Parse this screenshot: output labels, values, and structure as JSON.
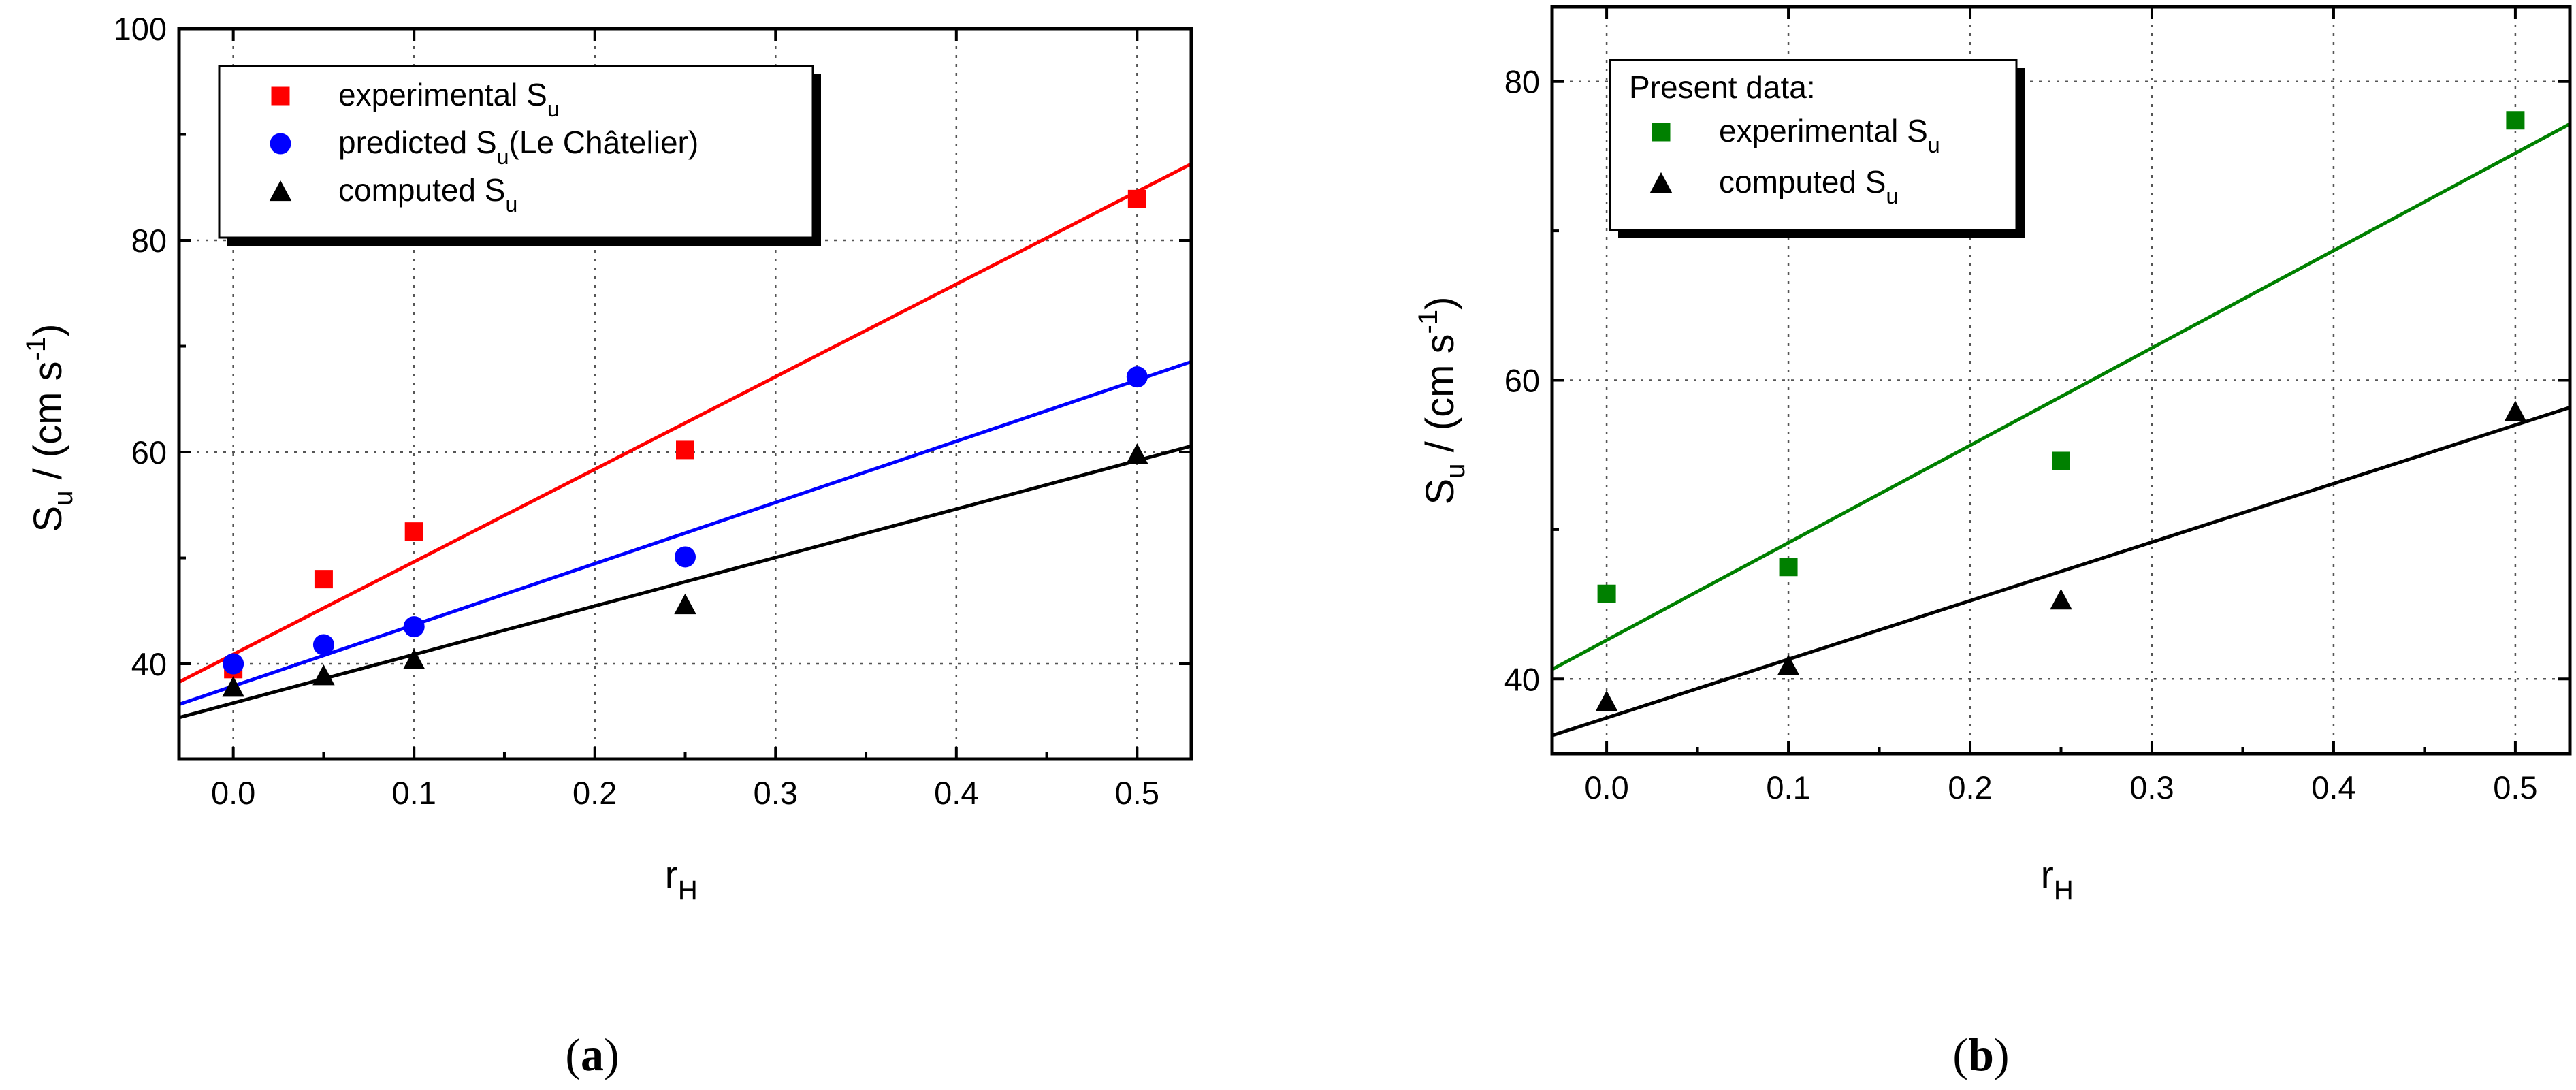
{
  "chart_data": [
    {
      "id": "a",
      "type": "scatter",
      "caption_letter": "a",
      "xlabel": "r",
      "xlabel_sub": "H",
      "ylabel_main": "S",
      "ylabel_sub": "u",
      "ylabel_unit": " / (cm s",
      "ylabel_sup": "-1",
      "ylabel_close": ")",
      "xlim": [
        -0.03,
        0.53
      ],
      "ylim": [
        31,
        100
      ],
      "xticks": [
        0.0,
        0.1,
        0.2,
        0.3,
        0.4,
        0.5
      ],
      "xtick_labels": [
        "0.0",
        "0.1",
        "0.2",
        "0.3",
        "0.4",
        "0.5"
      ],
      "yticks": [
        40,
        60,
        80,
        100
      ],
      "ytick_labels": [
        "40",
        "60",
        "80",
        "100"
      ],
      "grid": true,
      "legend_position": "top-left",
      "series": [
        {
          "name": "experimental S_u",
          "legend_label": "experimental S",
          "legend_sub": "u",
          "legend_suffix": "",
          "color": "#ff0000",
          "marker": "square",
          "x": [
            0.0,
            0.05,
            0.1,
            0.25,
            0.5
          ],
          "y": [
            39.5,
            48.0,
            52.5,
            60.2,
            83.9
          ],
          "fit": [
            40.9,
            84.6
          ]
        },
        {
          "name": "predicted S_u (Le Châtelier)",
          "legend_label": "predicted S",
          "legend_sub": "u",
          "legend_suffix": "(Le Châtelier)",
          "color": "#0000ff",
          "marker": "circle",
          "x": [
            0.0,
            0.05,
            0.1,
            0.25,
            0.5
          ],
          "y": [
            40.0,
            41.8,
            43.5,
            50.1,
            67.1
          ],
          "fit": [
            37.9,
            66.8
          ]
        },
        {
          "name": "computed S_u",
          "legend_label": "computed S",
          "legend_sub": "u",
          "legend_suffix": "",
          "color": "#000000",
          "marker": "triangle",
          "x": [
            0.0,
            0.05,
            0.1,
            0.25,
            0.5
          ],
          "y": [
            37.8,
            38.9,
            40.4,
            45.6,
            59.8
          ],
          "fit": [
            36.3,
            59.2
          ]
        }
      ]
    },
    {
      "id": "b",
      "type": "scatter",
      "caption_letter": "b",
      "xlabel": "r",
      "xlabel_sub": "H",
      "ylabel_main": "S",
      "ylabel_sub": "u",
      "ylabel_unit": " / (cm s",
      "ylabel_sup": "-1",
      "ylabel_close": ")",
      "xlim": [
        -0.03,
        0.53
      ],
      "ylim": [
        35,
        85
      ],
      "xticks": [
        0.0,
        0.1,
        0.2,
        0.3,
        0.4,
        0.5
      ],
      "xtick_labels": [
        "0.0",
        "0.1",
        "0.2",
        "0.3",
        "0.4",
        "0.5"
      ],
      "yticks": [
        40,
        60,
        80
      ],
      "ytick_labels": [
        "40",
        "60",
        "80"
      ],
      "grid": true,
      "legend_position": "top-left",
      "legend_title": "Present data:",
      "series": [
        {
          "name": "experimental S_u",
          "legend_label": "experimental S",
          "legend_sub": "u",
          "legend_suffix": "",
          "color": "#008000",
          "marker": "square",
          "x": [
            0.0,
            0.1,
            0.25,
            0.5
          ],
          "y": [
            45.7,
            47.5,
            54.6,
            77.4
          ],
          "fit": [
            42.6,
            75.2
          ]
        },
        {
          "name": "computed S_u",
          "legend_label": "computed S",
          "legend_sub": "u",
          "legend_suffix": "",
          "color": "#000000",
          "marker": "triangle",
          "x": [
            0.0,
            0.1,
            0.25,
            0.5
          ],
          "y": [
            38.5,
            40.9,
            45.3,
            57.9
          ],
          "fit": [
            37.4,
            57.0
          ]
        }
      ]
    }
  ]
}
